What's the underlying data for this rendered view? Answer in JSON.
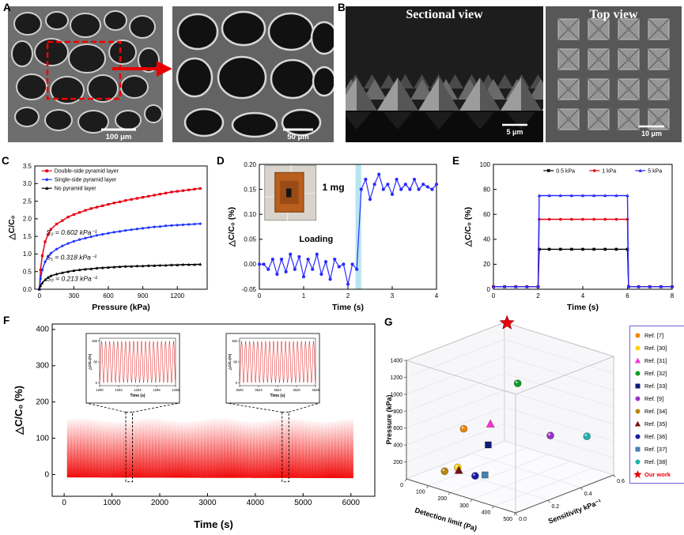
{
  "figure_type": "scientific-figure",
  "panels": {
    "a": {
      "label": "A",
      "scale_left": "100 μm",
      "scale_right": "50 μm"
    },
    "b": {
      "label": "B",
      "title_left": "Sectional view",
      "title_right": "Top view",
      "scale_left": "5 μm",
      "scale_right": "10 μm"
    },
    "c": {
      "label": "C"
    },
    "d": {
      "label": "D"
    },
    "e": {
      "label": "E"
    },
    "f": {
      "label": "F"
    },
    "g": {
      "label": "G"
    }
  },
  "chart_data": [
    {
      "panel": "C",
      "type": "line",
      "xlabel": "Pressure (kPa)",
      "ylabel": "△C/C₀",
      "xlim": [
        -40,
        1460
      ],
      "ylim": [
        0,
        3.5
      ],
      "xticks": [
        0,
        300,
        600,
        900,
        1200
      ],
      "yticks": [
        0,
        0.5,
        1,
        1.5,
        2,
        2.5,
        3,
        3.5
      ],
      "ydec": 1,
      "legend": {
        "x": 0.04,
        "y": 0.04,
        "dir": "v",
        "gap": 11
      },
      "series": [
        {
          "name": "Double-side pyramid layer",
          "color": "#e60012",
          "marker": "square",
          "x": [
            0,
            10,
            25,
            50,
            75,
            100,
            150,
            200,
            250,
            300,
            350,
            400,
            450,
            500,
            550,
            600,
            650,
            700,
            750,
            800,
            850,
            900,
            950,
            1000,
            1050,
            1100,
            1150,
            1200,
            1250,
            1300,
            1350,
            1400
          ],
          "y": [
            0,
            0.55,
            0.95,
            1.35,
            1.55,
            1.7,
            1.85,
            1.95,
            2.05,
            2.12,
            2.18,
            2.24,
            2.29,
            2.33,
            2.37,
            2.41,
            2.45,
            2.48,
            2.52,
            2.55,
            2.58,
            2.61,
            2.64,
            2.67,
            2.7,
            2.73,
            2.76,
            2.78,
            2.8,
            2.82,
            2.84,
            2.86
          ]
        },
        {
          "name": "Single-side pyramid layer",
          "color": "#2036ff",
          "marker": "circle",
          "x": [
            0,
            10,
            25,
            50,
            75,
            100,
            150,
            200,
            250,
            300,
            350,
            400,
            450,
            500,
            550,
            600,
            650,
            700,
            750,
            800,
            850,
            900,
            950,
            1000,
            1050,
            1100,
            1150,
            1200,
            1250,
            1300,
            1350,
            1400
          ],
          "y": [
            0,
            0.3,
            0.55,
            0.78,
            0.92,
            1.02,
            1.14,
            1.23,
            1.3,
            1.36,
            1.41,
            1.45,
            1.49,
            1.53,
            1.56,
            1.59,
            1.62,
            1.64,
            1.67,
            1.69,
            1.71,
            1.73,
            1.75,
            1.77,
            1.78,
            1.8,
            1.81,
            1.82,
            1.83,
            1.84,
            1.85,
            1.86
          ]
        },
        {
          "name": "No pyramid layer",
          "color": "#000000",
          "marker": "triangle",
          "x": [
            0,
            10,
            25,
            50,
            75,
            100,
            150,
            200,
            250,
            300,
            350,
            400,
            450,
            500,
            550,
            600,
            650,
            700,
            750,
            800,
            850,
            900,
            950,
            1000,
            1050,
            1100,
            1150,
            1200,
            1250,
            1300,
            1350,
            1400
          ],
          "y": [
            0,
            0.1,
            0.18,
            0.27,
            0.33,
            0.38,
            0.43,
            0.47,
            0.5,
            0.53,
            0.55,
            0.57,
            0.58,
            0.6,
            0.61,
            0.62,
            0.63,
            0.64,
            0.65,
            0.65,
            0.66,
            0.66,
            0.67,
            0.67,
            0.68,
            0.68,
            0.69,
            0.69,
            0.7,
            0.7,
            0.7,
            0.71
          ]
        }
      ],
      "annotations": [
        {
          "text": "S₂ = 0.602 kPa⁻¹",
          "x": 60,
          "y": 1.55,
          "size": 8.5,
          "style": "italic"
        },
        {
          "text": "S₁ = 0.318 kPa⁻¹",
          "x": 60,
          "y": 0.84,
          "size": 8.5,
          "style": "italic"
        },
        {
          "text": "S₀ = 0.213 kPa⁻¹",
          "x": 60,
          "y": 0.24,
          "size": 8.5,
          "style": "italic"
        }
      ]
    },
    {
      "panel": "D",
      "type": "line",
      "xlabel": "Time (s)",
      "ylabel": "△C/C₀ (%)",
      "xlim": [
        0,
        4
      ],
      "ylim": [
        -0.05,
        0.2
      ],
      "xticks": [
        0,
        1,
        2,
        3,
        4
      ],
      "yticks": [
        -0.05,
        0,
        0.05,
        0.1,
        0.15,
        0.2
      ],
      "ydec": 2,
      "band": {
        "x0": 2.17,
        "x1": 2.3,
        "color": "#b9e4f2"
      },
      "photo": {
        "x0": 0.12,
        "x1": 1.28,
        "y0": 0.088,
        "y1": 0.198
      },
      "series": [
        {
          "name": "capacitance response",
          "color": "#2a2aff",
          "marker": "circle",
          "x": [
            0,
            0.1,
            0.2,
            0.3,
            0.4,
            0.5,
            0.6,
            0.7,
            0.8,
            0.9,
            1,
            1.1,
            1.2,
            1.3,
            1.4,
            1.5,
            1.6,
            1.7,
            1.8,
            1.9,
            2,
            2.1,
            2.2,
            2.3,
            2.4,
            2.5,
            2.6,
            2.7,
            2.8,
            2.9,
            3,
            3.1,
            3.2,
            3.3,
            3.4,
            3.5,
            3.6,
            3.7,
            3.8,
            3.9,
            4
          ],
          "y": [
            0,
            0,
            -0.01,
            0.01,
            -0.02,
            0.01,
            -0.015,
            0.02,
            -0.01,
            0.015,
            -0.025,
            0.01,
            -0.01,
            0.02,
            -0.02,
            0.005,
            -0.03,
            0.01,
            -0.005,
            0,
            -0.04,
            0,
            -0.01,
            0.15,
            0.17,
            0.13,
            0.16,
            0.18,
            0.15,
            0.16,
            0.14,
            0.17,
            0.15,
            0.16,
            0.15,
            0.17,
            0.15,
            0.16,
            0.155,
            0.15,
            0.16
          ]
        }
      ],
      "annotations": [
        {
          "text": "1 mg",
          "x": 1.42,
          "y": 0.148,
          "size": 12,
          "weight": "bold",
          "anchor": "start"
        },
        {
          "text": "Loading",
          "x": 0.9,
          "y": 0.045,
          "size": 11,
          "weight": "bold",
          "anchor": "start"
        }
      ]
    },
    {
      "panel": "E",
      "type": "line",
      "xlabel": "Time (s)",
      "ylabel": "△C/C₀ (%)",
      "xlim": [
        0,
        8
      ],
      "ylim": [
        0,
        100
      ],
      "xticks": [
        0,
        2,
        4,
        6,
        8
      ],
      "yticks": [
        0,
        20,
        40,
        60,
        80,
        100
      ],
      "legend": {
        "x": 0.28,
        "y": 0.05,
        "dir": "h",
        "gap": 58
      },
      "series": [
        {
          "name": "0.5 kPa",
          "color": "#000000",
          "marker": "square",
          "x": [
            0,
            0.5,
            1,
            1.5,
            2,
            2.05,
            2.5,
            3,
            3.5,
            4,
            4.5,
            5,
            5.5,
            6,
            6.05,
            6.5,
            7,
            7.5,
            8
          ],
          "y": [
            2,
            2,
            2,
            2,
            2,
            32,
            32,
            32,
            32,
            32,
            32,
            32,
            32,
            32,
            2,
            2,
            2,
            2,
            2
          ]
        },
        {
          "name": "1 kPa",
          "color": "#e60012",
          "marker": "circle",
          "x": [
            0,
            0.5,
            1,
            1.5,
            2,
            2.05,
            2.5,
            3,
            3.5,
            4,
            4.5,
            5,
            5.5,
            6,
            6.05,
            6.5,
            7,
            7.5,
            8
          ],
          "y": [
            2,
            2,
            2,
            2,
            2,
            56,
            56,
            56,
            56,
            56,
            56,
            56,
            56,
            56,
            2,
            2,
            2,
            2,
            2
          ]
        },
        {
          "name": "5 kPa",
          "color": "#2a2aff",
          "marker": "triangle",
          "x": [
            0,
            0.5,
            1,
            1.5,
            2,
            2.05,
            2.5,
            3,
            3.5,
            4,
            4.5,
            5,
            5.5,
            6,
            6.05,
            6.5,
            7,
            7.5,
            8
          ],
          "y": [
            2,
            2,
            2,
            2,
            2,
            75,
            75,
            75,
            75,
            75,
            75,
            75,
            75,
            75,
            2,
            2,
            2,
            2,
            2
          ]
        }
      ]
    },
    {
      "panel": "F",
      "type": "area",
      "xlabel": "Time (s)",
      "ylabel": "△C/C₀ (%)",
      "xlim": [
        -250,
        6500
      ],
      "ylim": [
        -60,
        415
      ],
      "xticks": [
        0,
        1000,
        2000,
        3000,
        4000,
        5000,
        6000
      ],
      "yticks": [
        0,
        100,
        200,
        300,
        400
      ],
      "oscillation": {
        "t_start": 60,
        "t_end": 6050,
        "y_min": -8,
        "y_max": 160,
        "color": "#f10e0e"
      },
      "insets": [
        {
          "xticks": [
            "1260",
            "1262",
            "1264",
            "1266",
            "1268"
          ],
          "yticks": [
            "0",
            "80",
            "160"
          ],
          "xlabel": "Time (s)",
          "ylabel": "△C/C₀(%)",
          "box_x": [
            1290,
            1430
          ]
        },
        {
          "xticks": [
            "4620",
            "4622",
            "4624",
            "4626",
            "4628"
          ],
          "yticks": [
            "0",
            "80",
            "160"
          ],
          "xlabel": "Time (s)",
          "ylabel": "△C/C₀(%)",
          "box_x": [
            4560,
            4700
          ]
        }
      ]
    },
    {
      "panel": "G",
      "type": "scatter3d",
      "axes": {
        "x": {
          "label": "Detection limit (Pa)",
          "ticks": [
            0,
            100,
            200,
            300,
            400,
            500
          ],
          "range": [
            0,
            500
          ]
        },
        "y": {
          "label": "Sensitivity kPa⁻¹",
          "ticks": [
            0,
            0.2,
            0.4,
            0.6
          ],
          "range": [
            0,
            0.6
          ]
        },
        "z": {
          "label": "Pressure (kPa)",
          "ticks": [
            200,
            400,
            600,
            800,
            1000,
            1200,
            1400
          ],
          "range": [
            0,
            1400
          ]
        }
      },
      "points": [
        {
          "label": "Ref. [7]",
          "color": "#f28500",
          "shape": "circle",
          "detection_pa": 150,
          "sensitivity": 0.15,
          "pressure_kpa": 600
        },
        {
          "label": "Ref. [30]",
          "color": "#ffd400",
          "shape": "circle",
          "detection_pa": 160,
          "sensitivity": 0.1,
          "pressure_kpa": 190
        },
        {
          "label": "Ref. [31]",
          "color": "#ff2fd2",
          "shape": "triangle",
          "detection_pa": 220,
          "sensitivity": 0.22,
          "pressure_kpa": 660
        },
        {
          "label": "Ref. [32]",
          "color": "#0f9d2a",
          "shape": "circle",
          "detection_pa": 300,
          "sensitivity": 0.28,
          "pressure_kpa": 1160
        },
        {
          "label": "Ref. [33]",
          "color": "#101a7a",
          "shape": "square",
          "detection_pa": 240,
          "sensitivity": 0.18,
          "pressure_kpa": 460
        },
        {
          "label": "Ref. [9]",
          "color": "#9932cc",
          "shape": "circle",
          "detection_pa": 420,
          "sensitivity": 0.32,
          "pressure_kpa": 610
        },
        {
          "label": "Ref. [34]",
          "color": "#b8860b",
          "shape": "circle",
          "detection_pa": 130,
          "sensitivity": 0.06,
          "pressure_kpa": 150
        },
        {
          "label": "Ref. [35]",
          "color": "#7b1113",
          "shape": "triangle",
          "detection_pa": 150,
          "sensitivity": 0.12,
          "pressure_kpa": 130
        },
        {
          "label": "Ref. [36]",
          "color": "#1a1aa6",
          "shape": "circle",
          "detection_pa": 210,
          "sensitivity": 0.14,
          "pressure_kpa": 100
        },
        {
          "label": "Ref. [37]",
          "color": "#4682b4",
          "shape": "square",
          "detection_pa": 240,
          "sensitivity": 0.16,
          "pressure_kpa": 120
        },
        {
          "label": "Ref. [38]",
          "color": "#20b2aa",
          "shape": "circle",
          "detection_pa": 490,
          "sensitivity": 0.45,
          "pressure_kpa": 560
        },
        {
          "label": "Our work",
          "color": "#e8000d",
          "shape": "star",
          "detection_pa": 10,
          "sensitivity": 0.602,
          "pressure_kpa": 1400
        }
      ]
    }
  ]
}
